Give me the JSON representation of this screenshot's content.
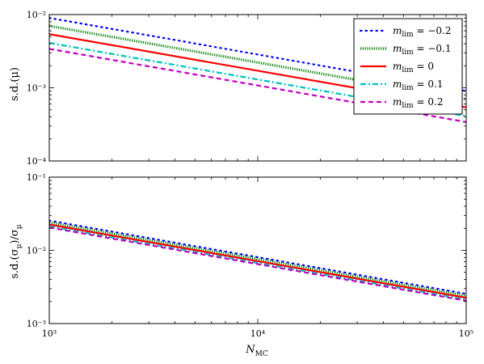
{
  "chart_data": [
    {
      "type": "line",
      "panel": "top",
      "ylabel": "s.d.(μ)",
      "xlabel": "",
      "xscale": "log",
      "yscale": "log",
      "xlim": [
        1000,
        100000
      ],
      "ylim": [
        0.0001,
        0.01
      ],
      "x_ticks": [
        {
          "value": 1000,
          "label": "10³"
        },
        {
          "value": 10000,
          "label": "10⁴"
        },
        {
          "value": 100000,
          "label": "10⁵"
        }
      ],
      "y_ticks": [
        {
          "value": 0.0001,
          "label": "10⁻⁴"
        },
        {
          "value": 0.001,
          "label": "10⁻³"
        },
        {
          "value": 0.01,
          "label": "10⁻²"
        }
      ],
      "grid": false,
      "legend": "top-right",
      "series": [
        {
          "name": "m_lim = −0.2",
          "color": "#0000ff",
          "style": "dotted",
          "x": [
            1000,
            100000
          ],
          "values": [
            0.009,
            0.0009
          ]
        },
        {
          "name": "m_lim = −0.1",
          "color": "#008000",
          "style": "dense-dotted",
          "x": [
            1000,
            100000
          ],
          "values": [
            0.007,
            0.0007
          ]
        },
        {
          "name": "m_lim = 0",
          "color": "#ff0000",
          "style": "solid",
          "x": [
            1000,
            100000
          ],
          "values": [
            0.0054,
            0.00054
          ]
        },
        {
          "name": "m_lim = 0.1",
          "color": "#00bfbf",
          "style": "dashdot",
          "x": [
            1000,
            100000
          ],
          "values": [
            0.0041,
            0.00041
          ]
        },
        {
          "name": "m_lim = 0.2",
          "color": "#bf00bf",
          "style": "dashed",
          "x": [
            1000,
            100000
          ],
          "values": [
            0.0034,
            0.00034
          ]
        }
      ]
    },
    {
      "type": "line",
      "panel": "bottom",
      "ylabel": "s.d.(σ_μ)/σ_μ",
      "xlabel": "N_MC",
      "xscale": "log",
      "yscale": "log",
      "xlim": [
        1000,
        100000
      ],
      "ylim": [
        0.001,
        0.1
      ],
      "x_ticks": [
        {
          "value": 1000,
          "label": "10³"
        },
        {
          "value": 10000,
          "label": "10⁴"
        },
        {
          "value": 100000,
          "label": "10⁵"
        }
      ],
      "y_ticks": [
        {
          "value": 0.001,
          "label": "10⁻³"
        },
        {
          "value": 0.01,
          "label": "10⁻²"
        },
        {
          "value": 0.1,
          "label": "10⁻¹"
        }
      ],
      "grid": false,
      "series": [
        {
          "name": "m_lim = −0.2",
          "color": "#0000ff",
          "style": "dotted",
          "x": [
            1000,
            100000
          ],
          "values": [
            0.0255,
            0.00255
          ]
        },
        {
          "name": "m_lim = −0.1",
          "color": "#008000",
          "style": "dense-dotted",
          "x": [
            1000,
            100000
          ],
          "values": [
            0.024,
            0.0024
          ]
        },
        {
          "name": "m_lim = 0",
          "color": "#ff0000",
          "style": "solid",
          "x": [
            1000,
            100000
          ],
          "values": [
            0.0225,
            0.00225
          ]
        },
        {
          "name": "m_lim = 0.1",
          "color": "#00bfbf",
          "style": "dashdot",
          "x": [
            1000,
            100000
          ],
          "values": [
            0.0212,
            0.00212
          ]
        },
        {
          "name": "m_lim = 0.2",
          "color": "#bf00bf",
          "style": "dashed",
          "x": [
            1000,
            100000
          ],
          "values": [
            0.0205,
            0.00205
          ]
        }
      ]
    }
  ],
  "legend": {
    "entries": [
      {
        "prefix": "m",
        "sub": "lim",
        "value": " = −0.2",
        "color": "#0000ff",
        "style": "dotted"
      },
      {
        "prefix": "m",
        "sub": "lim",
        "value": " = −0.1",
        "color": "#008000",
        "style": "dense-dotted"
      },
      {
        "prefix": "m",
        "sub": "lim",
        "value": " = 0",
        "color": "#ff0000",
        "style": "solid"
      },
      {
        "prefix": "m",
        "sub": "lim",
        "value": " = 0.1",
        "color": "#00bfbf",
        "style": "dashdot"
      },
      {
        "prefix": "m",
        "sub": "lim",
        "value": " = 0.2",
        "color": "#bf00bf",
        "style": "dashed"
      }
    ]
  },
  "labels": {
    "top_ylabel": "s.d.(μ)",
    "bottom_ylabel": "s.d.(σ",
    "bottom_ylabel_sub": "μ",
    "bottom_ylabel_tail": ")/σ",
    "bottom_ylabel_sub2": "μ",
    "xlabel_main": "N",
    "xlabel_sub": "MC"
  }
}
